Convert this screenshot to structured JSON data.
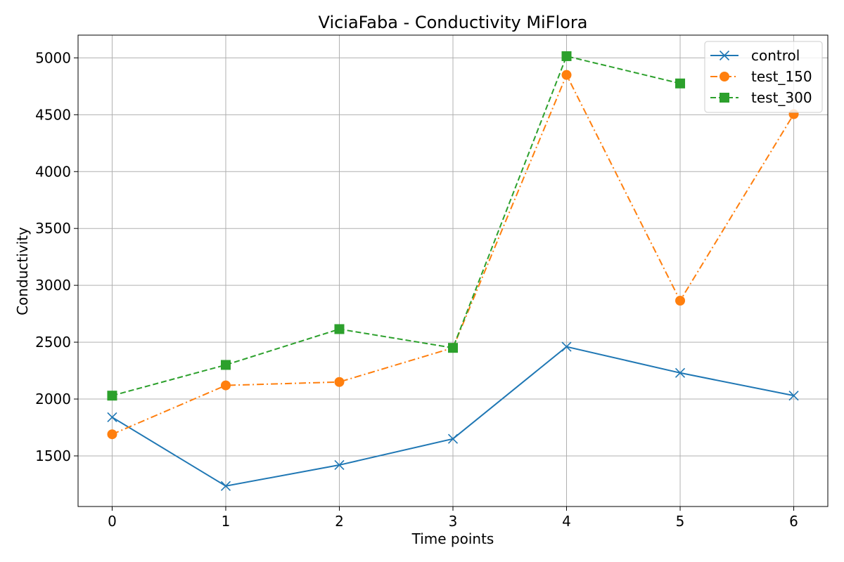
{
  "chart_data": {
    "type": "line",
    "title": "ViciaFaba - Conductivity MiFlora",
    "xlabel": "Time points",
    "ylabel": "Conductivity",
    "x": [
      0,
      1,
      2,
      3,
      4,
      5,
      6
    ],
    "xticks": [
      "0",
      "1",
      "2",
      "3",
      "4",
      "5",
      "6"
    ],
    "yticks": [
      "1500",
      "2000",
      "2500",
      "3000",
      "3500",
      "4000",
      "4500",
      "5000"
    ],
    "xlim": [
      -0.3,
      6.3
    ],
    "ylim": [
      1055,
      5200
    ],
    "grid": true,
    "legend_position": "top-right",
    "series": [
      {
        "name": "control",
        "values": [
          1840,
          1235,
          1420,
          1650,
          2460,
          2230,
          2030
        ],
        "color": "#1f77b4",
        "marker": "x",
        "linestyle": "solid"
      },
      {
        "name": "test_150",
        "values": [
          1690,
          2120,
          2150,
          2450,
          4850,
          2865,
          4505
        ],
        "color": "#ff7f0e",
        "marker": "circle",
        "linestyle": "dashdot"
      },
      {
        "name": "test_300",
        "values": [
          2030,
          2300,
          2615,
          2450,
          5015,
          4775,
          null
        ],
        "color": "#2ca02c",
        "marker": "square",
        "linestyle": "dashed"
      }
    ]
  }
}
